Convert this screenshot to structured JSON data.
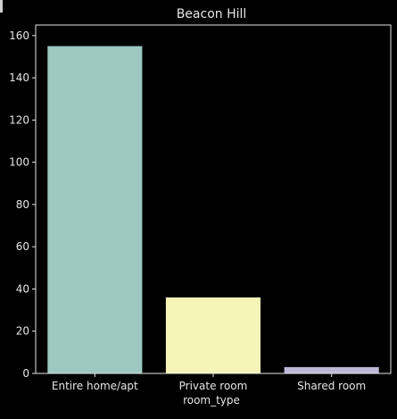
{
  "chart_data": {
    "type": "bar",
    "title": "Beacon Hill",
    "xlabel": "room_type",
    "ylabel": "",
    "categories": [
      "Entire home/apt",
      "Private room",
      "Shared room"
    ],
    "values": [
      155,
      36,
      3
    ],
    "ylim": [
      0,
      165
    ],
    "yticks": [
      0,
      20,
      40,
      60,
      80,
      100,
      120,
      140,
      160
    ],
    "colors": [
      "#9cc8c0",
      "#f5f5b8",
      "#bcb8d6"
    ],
    "background": "#000000",
    "axis_color": "#e6e6e6",
    "grid": false,
    "legend": "none"
  }
}
